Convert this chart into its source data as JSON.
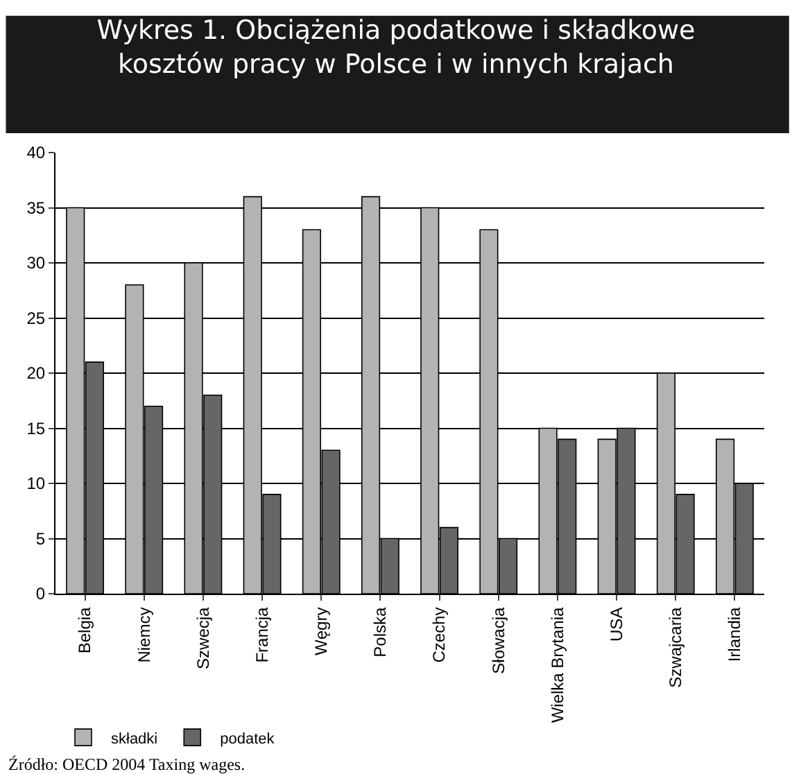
{
  "chart_data": {
    "type": "bar",
    "title": "Wykres 1. Obciążenia podatkowe i składkowe kosztów pracy w Polsce i w innych krajach",
    "categories": [
      "Belgia",
      "Niemcy",
      "Szwecja",
      "Francja",
      "Węgry",
      "Polska",
      "Czechy",
      "Słowacja",
      "Wielka Brytania",
      "USA",
      "Szwajcaria",
      "Irlandia"
    ],
    "series": [
      {
        "name": "składki",
        "color": "#b3b3b3",
        "values": [
          35,
          28,
          30,
          36,
          33,
          36,
          35,
          33,
          15,
          14,
          20,
          14
        ]
      },
      {
        "name": "podatek",
        "color": "#666666",
        "values": [
          21,
          17,
          18,
          9,
          13,
          5,
          6,
          5,
          14,
          15,
          9,
          10
        ]
      }
    ],
    "ylim": [
      0,
      40
    ],
    "yticks": [
      0,
      5,
      10,
      15,
      20,
      25,
      30,
      35,
      40
    ],
    "grid": "y",
    "legend": "bottom left",
    "annotations": [
      "Źródło: OECD 2004 Taxing wages."
    ]
  }
}
